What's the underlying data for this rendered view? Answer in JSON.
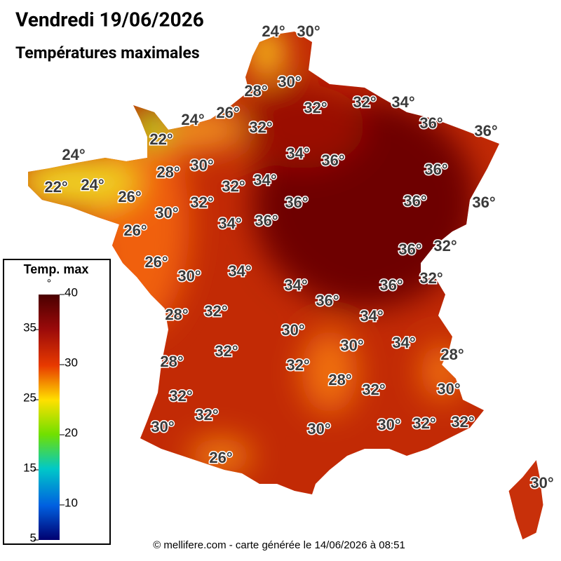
{
  "header": {
    "title": "Vendredi 19/06/2026",
    "subtitle": "Températures maximales"
  },
  "legend": {
    "title": "Temp. max",
    "unit": "°",
    "ticks": [
      40,
      35,
      30,
      25,
      20,
      15,
      10,
      5
    ]
  },
  "labels": [
    "24°",
    "30°",
    "28°",
    "30°",
    "32°",
    "32°",
    "34°",
    "24°",
    "26°",
    "32°",
    "36°",
    "36°",
    "22°",
    "24°",
    "34°",
    "36°",
    "28°",
    "30°",
    "36°",
    "22°",
    "24°",
    "32°",
    "34°",
    "26°",
    "32°",
    "36°",
    "36°",
    "36°",
    "30°",
    "34°",
    "36°",
    "26°",
    "36°",
    "32°",
    "26°",
    "30°",
    "34°",
    "34°",
    "36°",
    "32°",
    "36°",
    "28°",
    "32°",
    "34°",
    "30°",
    "30°",
    "34°",
    "32°",
    "28°",
    "28°",
    "32°",
    "28°",
    "32°",
    "30°",
    "32°",
    "32°",
    "30°",
    "30°",
    "30°",
    "32°",
    "32°",
    "26°",
    "30°"
  ],
  "footer": "© mellifere.com - carte générée le 14/06/2026 à 08:51"
}
